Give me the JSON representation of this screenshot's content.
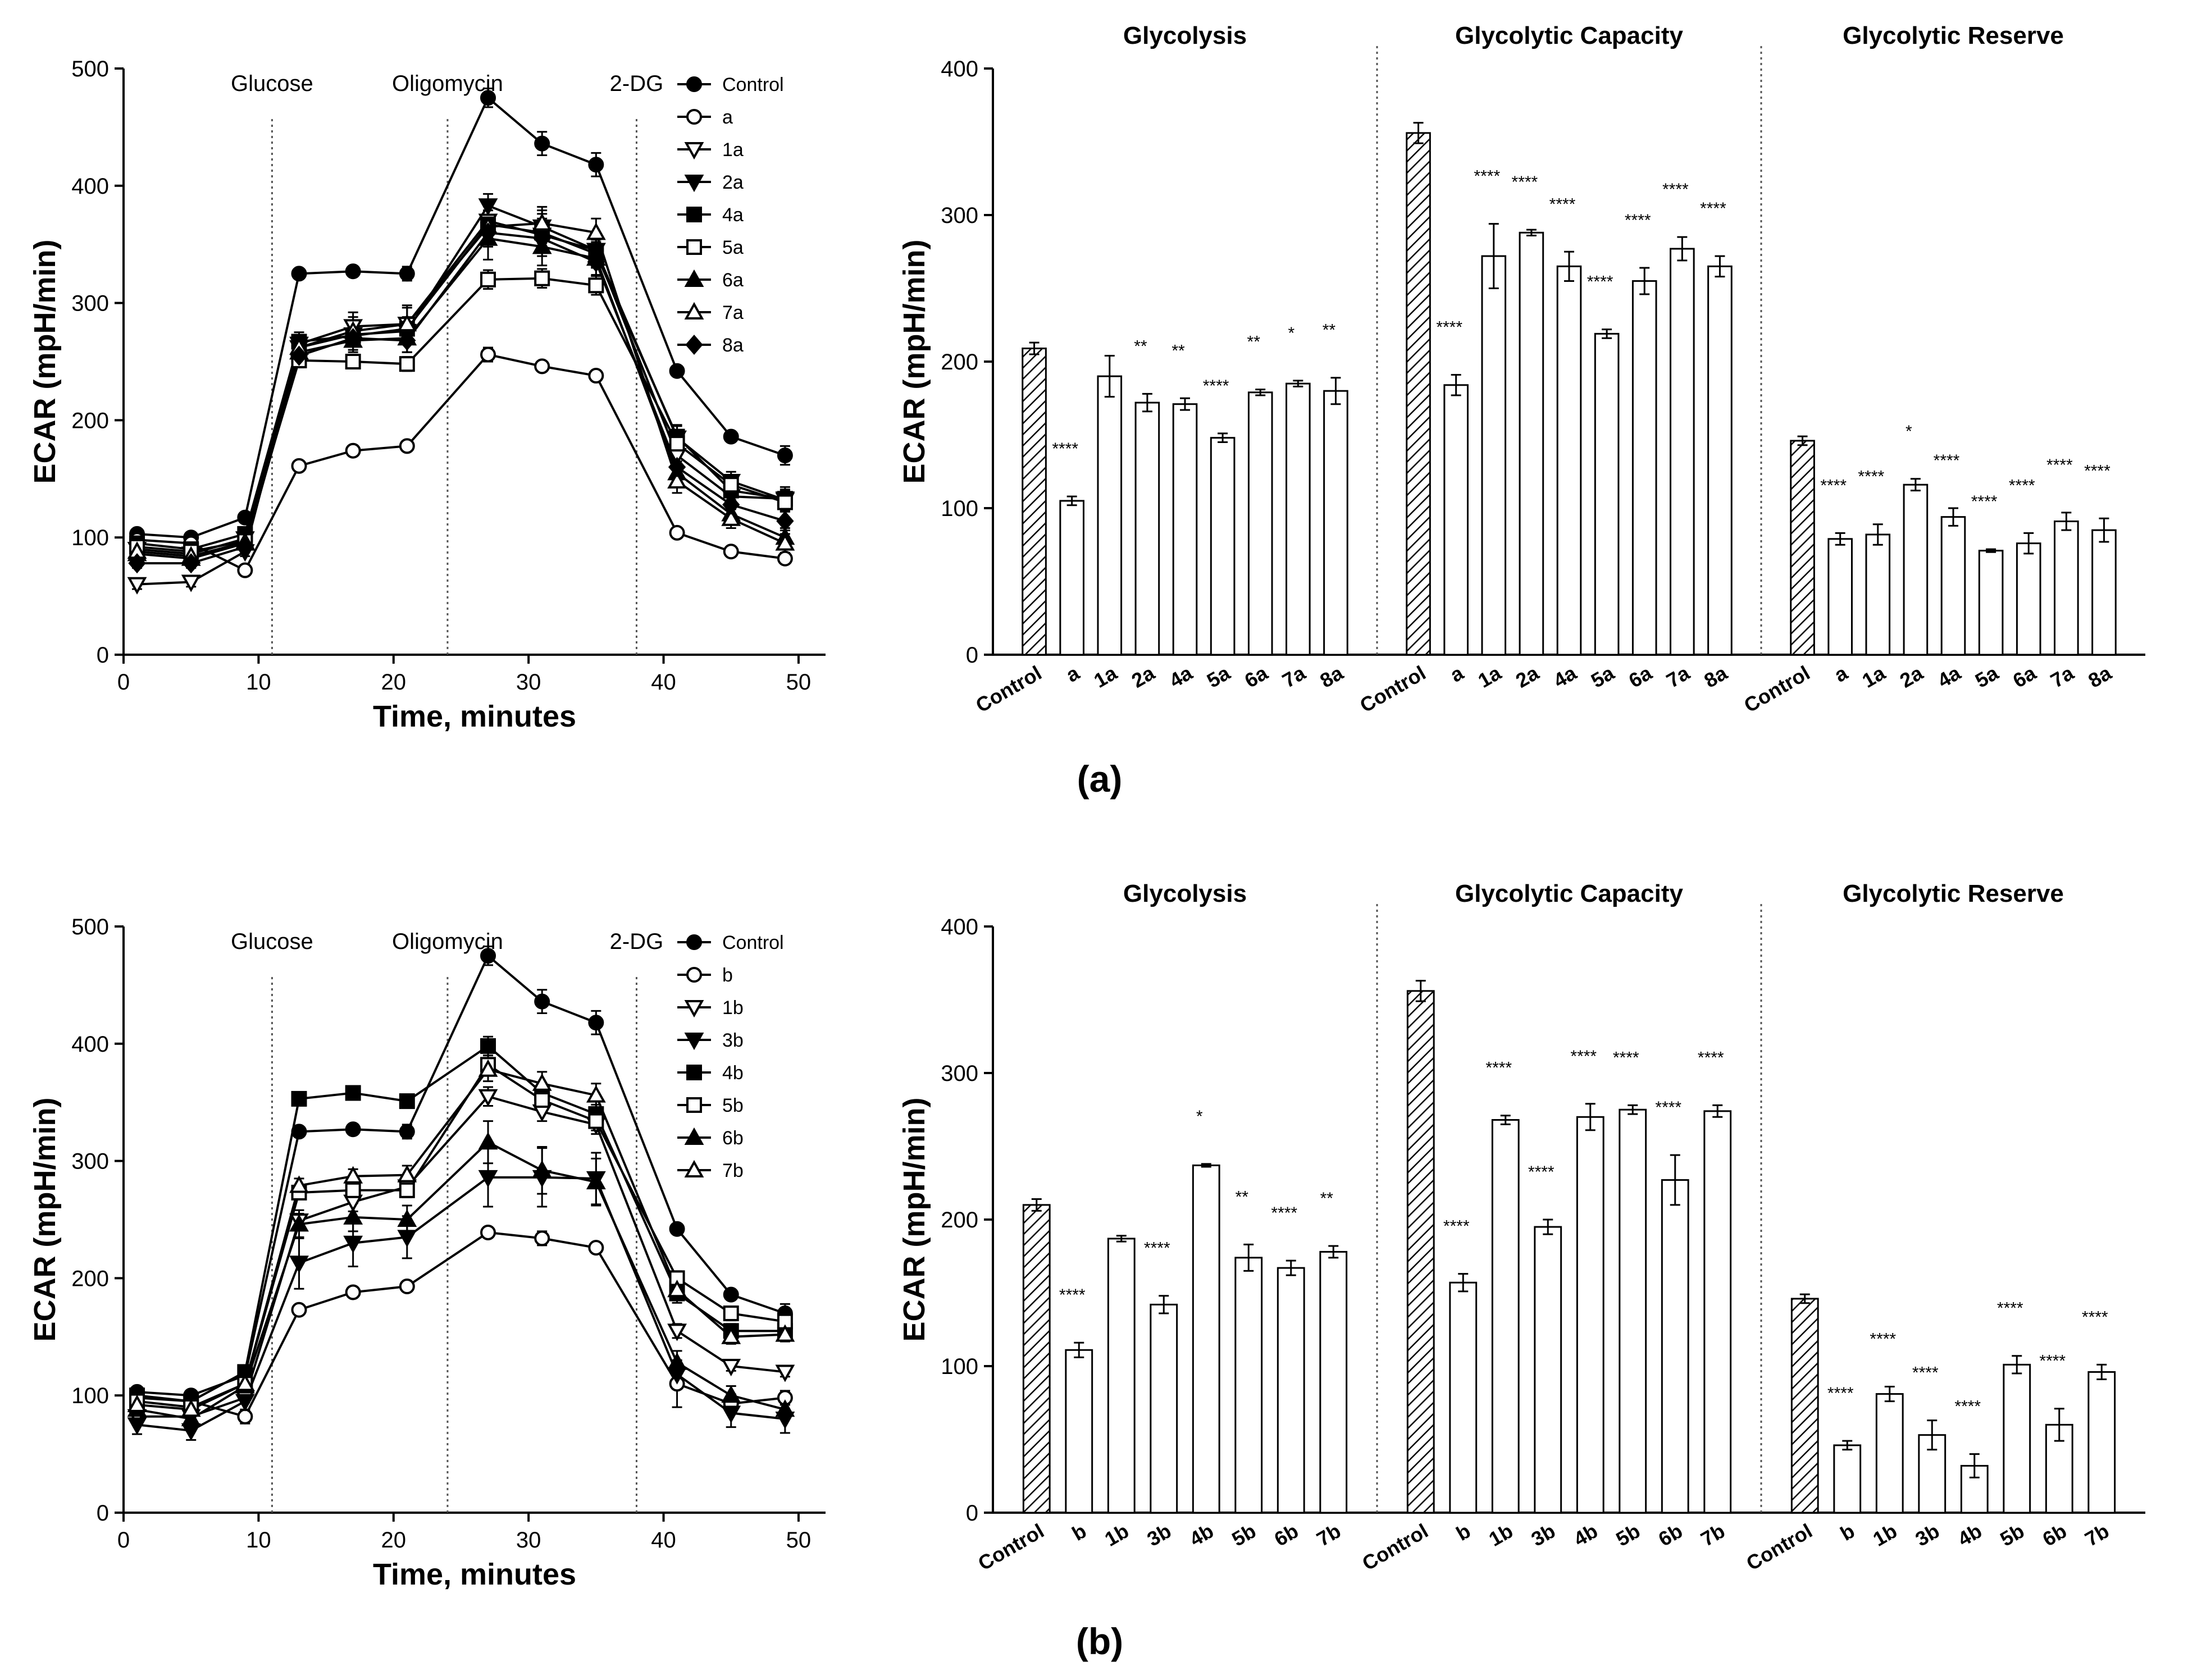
{
  "panel_labels": [
    "(a)",
    "(b)"
  ],
  "colors": {
    "ink": "#000000",
    "bg": "#ffffff",
    "hatch": "#000000"
  },
  "chart_data": [
    {
      "id": "a-line",
      "type": "line",
      "title": "",
      "xlabel": "Time, minutes",
      "ylabel": "ECAR (mpH/min)",
      "xlim": [
        0,
        52
      ],
      "ylim": [
        0,
        500
      ],
      "xticks": [
        0,
        10,
        20,
        30,
        40,
        50
      ],
      "yticks": [
        0,
        100,
        200,
        300,
        400,
        500
      ],
      "injections": [
        {
          "label": "Glucose",
          "x": 11
        },
        {
          "label": "Oligomycin",
          "x": 24
        },
        {
          "label": "2-DG",
          "x": 38
        }
      ],
      "legend_position": "top-right",
      "x": [
        1,
        5,
        9,
        13,
        17,
        21,
        27,
        31,
        35,
        41,
        45,
        49
      ],
      "series": [
        {
          "name": "Control",
          "marker": "circle-filled",
          "y": [
            103,
            100,
            117,
            325,
            327,
            325,
            475,
            436,
            418,
            242,
            186,
            170
          ],
          "err": [
            4,
            4,
            4,
            4,
            4,
            6,
            8,
            10,
            10,
            4,
            4,
            8
          ]
        },
        {
          "name": "a",
          "marker": "circle-open",
          "y": [
            98,
            95,
            72,
            161,
            174,
            178,
            256,
            246,
            238,
            104,
            88,
            82
          ],
          "err": [
            4,
            4,
            4,
            4,
            4,
            4,
            6,
            4,
            4,
            4,
            4,
            4
          ]
        },
        {
          "name": "1a",
          "marker": "tri-down-open",
          "y": [
            60,
            62,
            88,
            265,
            280,
            282,
            370,
            358,
            345,
            170,
            135,
            133
          ],
          "err": [
            4,
            4,
            4,
            8,
            12,
            16,
            18,
            18,
            15,
            12,
            10,
            10
          ]
        },
        {
          "name": "2a",
          "marker": "tri-down-filled",
          "y": [
            90,
            86,
            99,
            262,
            273,
            276,
            383,
            365,
            345,
            185,
            148,
            132
          ],
          "err": [
            4,
            4,
            4,
            8,
            10,
            10,
            10,
            14,
            14,
            10,
            8,
            8
          ]
        },
        {
          "name": "4a",
          "marker": "square-filled",
          "y": [
            95,
            90,
            103,
            267,
            272,
            278,
            367,
            360,
            342,
            186,
            140,
            133
          ],
          "err": [
            4,
            4,
            4,
            8,
            8,
            10,
            12,
            12,
            12,
            10,
            8,
            8
          ]
        },
        {
          "name": "5a",
          "marker": "square-open",
          "y": [
            92,
            88,
            97,
            251,
            250,
            248,
            320,
            321,
            315,
            180,
            145,
            130
          ],
          "err": [
            4,
            4,
            4,
            6,
            6,
            6,
            8,
            8,
            8,
            8,
            8,
            8
          ]
        },
        {
          "name": "6a",
          "marker": "tri-up-filled",
          "y": [
            86,
            82,
            95,
            258,
            268,
            270,
            355,
            348,
            338,
            155,
            120,
            100
          ],
          "err": [
            4,
            4,
            4,
            8,
            10,
            12,
            18,
            16,
            14,
            10,
            8,
            8
          ]
        },
        {
          "name": "7a",
          "marker": "tri-up-open",
          "y": [
            88,
            84,
            96,
            262,
            276,
            282,
            365,
            368,
            360,
            148,
            116,
            95
          ],
          "err": [
            4,
            4,
            4,
            8,
            12,
            14,
            14,
            14,
            12,
            10,
            8,
            8
          ]
        },
        {
          "name": "8a",
          "marker": "diamond-filled",
          "y": [
            78,
            78,
            92,
            255,
            270,
            268,
            360,
            355,
            335,
            160,
            128,
            114
          ],
          "err": [
            4,
            4,
            4,
            8,
            10,
            10,
            12,
            12,
            12,
            10,
            8,
            8
          ]
        }
      ]
    },
    {
      "id": "a-bar",
      "type": "bar",
      "ylabel": "ECAR (mpH/min)",
      "ylim": [
        0,
        400
      ],
      "yticks": [
        0,
        100,
        200,
        300,
        400
      ],
      "groups": [
        {
          "title": "Glycolysis",
          "categories": [
            "Control",
            "a",
            "1a",
            "2a",
            "4a",
            "5a",
            "6a",
            "7a",
            "8a"
          ],
          "values": [
            209,
            105,
            190,
            172,
            171,
            148,
            179,
            185,
            180
          ],
          "errors": [
            4,
            3,
            14,
            6,
            4,
            3,
            2,
            2,
            9
          ],
          "significance": [
            "",
            "****",
            "",
            "**",
            "**",
            "****",
            "**",
            "*",
            "**"
          ]
        },
        {
          "title": "Glycolytic Capacity",
          "categories": [
            "Control",
            "a",
            "1a",
            "2a",
            "4a",
            "5a",
            "6a",
            "7a",
            "8a"
          ],
          "values": [
            356,
            184,
            272,
            288,
            265,
            219,
            255,
            277,
            265
          ],
          "errors": [
            7,
            7,
            22,
            2,
            10,
            3,
            9,
            8,
            7
          ],
          "significance": [
            "",
            "****",
            "****",
            "****",
            "****",
            "****",
            "****",
            "****",
            "****"
          ]
        },
        {
          "title": "Glycolytic Reserve",
          "categories": [
            "Control",
            "a",
            "1a",
            "2a",
            "4a",
            "5a",
            "6a",
            "7a",
            "8a"
          ],
          "values": [
            146,
            79,
            82,
            116,
            94,
            71,
            76,
            91,
            85
          ],
          "errors": [
            3,
            4,
            7,
            4,
            6,
            1,
            7,
            6,
            8
          ],
          "significance": [
            "",
            "****",
            "****",
            "*",
            "****",
            "****",
            "****",
            "****",
            "****"
          ]
        }
      ]
    },
    {
      "id": "b-line",
      "type": "line",
      "title": "",
      "xlabel": "Time, minutes",
      "ylabel": "ECAR (mpH/min)",
      "xlim": [
        0,
        52
      ],
      "ylim": [
        0,
        500
      ],
      "xticks": [
        0,
        10,
        20,
        30,
        40,
        50
      ],
      "yticks": [
        0,
        100,
        200,
        300,
        400,
        500
      ],
      "injections": [
        {
          "label": "Glucose",
          "x": 11
        },
        {
          "label": "Oligomycin",
          "x": 24
        },
        {
          "label": "2-DG",
          "x": 38
        }
      ],
      "legend_position": "top-right",
      "x": [
        1,
        5,
        9,
        13,
        17,
        21,
        27,
        31,
        35,
        41,
        45,
        49
      ],
      "series": [
        {
          "name": "Control",
          "marker": "circle-filled",
          "y": [
            103,
            100,
            117,
            325,
            327,
            325,
            475,
            436,
            418,
            242,
            186,
            170
          ],
          "err": [
            4,
            4,
            4,
            4,
            4,
            6,
            8,
            10,
            10,
            4,
            4,
            8
          ]
        },
        {
          "name": "b",
          "marker": "circle-open",
          "y": [
            98,
            95,
            82,
            173,
            188,
            193,
            239,
            234,
            226,
            110,
            93,
            98
          ],
          "err": [
            4,
            4,
            6,
            4,
            4,
            4,
            4,
            6,
            4,
            20,
            8,
            6
          ]
        },
        {
          "name": "1b",
          "marker": "tri-down-open",
          "y": [
            82,
            82,
            98,
            249,
            265,
            278,
            355,
            342,
            331,
            155,
            125,
            120
          ],
          "err": [
            4,
            4,
            4,
            6,
            8,
            8,
            8,
            8,
            8,
            6,
            4,
            4
          ]
        },
        {
          "name": "3b",
          "marker": "tri-down-filled",
          "y": [
            75,
            70,
            95,
            213,
            230,
            235,
            286,
            286,
            285,
            118,
            85,
            80
          ],
          "err": [
            8,
            8,
            8,
            22,
            20,
            18,
            25,
            25,
            22,
            12,
            12,
            12
          ]
        },
        {
          "name": "4b",
          "marker": "square-filled",
          "y": [
            100,
            95,
            120,
            353,
            358,
            351,
            398,
            358,
            340,
            187,
            155,
            155
          ],
          "err": [
            4,
            4,
            4,
            4,
            4,
            4,
            8,
            8,
            8,
            8,
            6,
            6
          ]
        },
        {
          "name": "5b",
          "marker": "square-open",
          "y": [
            95,
            90,
            110,
            273,
            275,
            275,
            382,
            352,
            334,
            200,
            170,
            163
          ],
          "err": [
            4,
            4,
            4,
            6,
            6,
            6,
            8,
            8,
            8,
            6,
            6,
            6
          ]
        },
        {
          "name": "6b",
          "marker": "tri-up-filled",
          "y": [
            88,
            80,
            108,
            246,
            252,
            250,
            316,
            292,
            282,
            128,
            100,
            88
          ],
          "err": [
            6,
            6,
            6,
            12,
            12,
            12,
            18,
            20,
            20,
            10,
            8,
            8
          ]
        },
        {
          "name": "7b",
          "marker": "tri-up-open",
          "y": [
            92,
            88,
            110,
            279,
            287,
            288,
            378,
            366,
            356,
            190,
            150,
            152
          ],
          "err": [
            4,
            4,
            4,
            6,
            6,
            8,
            10,
            10,
            10,
            8,
            6,
            6
          ]
        }
      ]
    },
    {
      "id": "b-bar",
      "type": "bar",
      "ylabel": "ECAR (mpH/min)",
      "ylim": [
        0,
        400
      ],
      "yticks": [
        0,
        100,
        200,
        300,
        400
      ],
      "groups": [
        {
          "title": "Glycolysis",
          "categories": [
            "Control",
            "b",
            "1b",
            "3b",
            "4b",
            "5b",
            "6b",
            "7b"
          ],
          "values": [
            210,
            111,
            187,
            142,
            237,
            174,
            167,
            178
          ],
          "errors": [
            4,
            5,
            2,
            6,
            1,
            9,
            5,
            4
          ],
          "significance": [
            "",
            "****",
            "",
            "****",
            "*",
            "**",
            "****",
            "**"
          ]
        },
        {
          "title": "Glycolytic Capacity",
          "categories": [
            "Control",
            "b",
            "1b",
            "3b",
            "4b",
            "5b",
            "6b",
            "7b"
          ],
          "values": [
            356,
            157,
            268,
            195,
            270,
            275,
            227,
            274
          ],
          "errors": [
            7,
            6,
            3,
            5,
            9,
            3,
            17,
            4
          ],
          "significance": [
            "",
            "****",
            "****",
            "****",
            "****",
            "****",
            "****",
            "****"
          ]
        },
        {
          "title": "Glycolytic Reserve",
          "categories": [
            "Control",
            "b",
            "1b",
            "3b",
            "4b",
            "5b",
            "6b",
            "7b"
          ],
          "values": [
            146,
            46,
            81,
            53,
            32,
            101,
            60,
            96
          ],
          "errors": [
            3,
            3,
            5,
            10,
            8,
            6,
            11,
            5
          ],
          "significance": [
            "",
            "****",
            "****",
            "****",
            "****",
            "****",
            "****",
            "****"
          ]
        }
      ]
    }
  ]
}
